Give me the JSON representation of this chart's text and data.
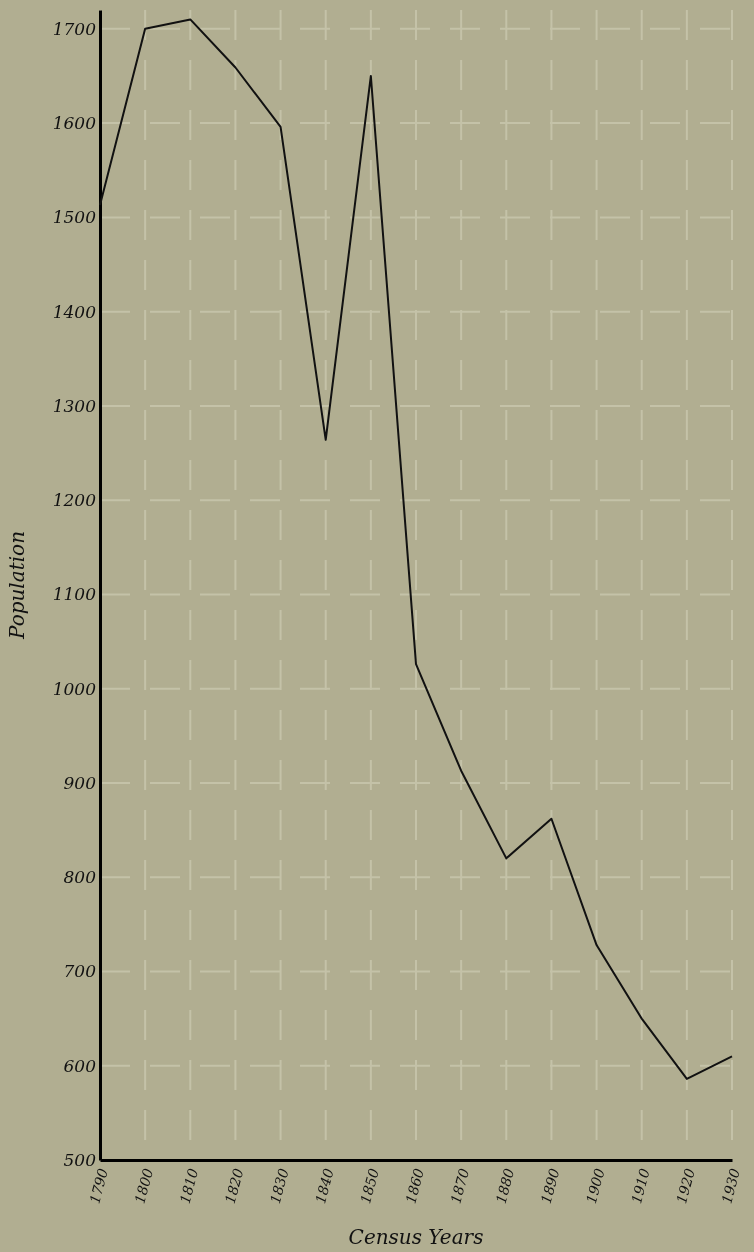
{
  "chart_data": {
    "type": "line",
    "xlabel": "Census Years",
    "ylabel": "Population",
    "x": [
      1790,
      1800,
      1810,
      1820,
      1830,
      1840,
      1850,
      1860,
      1870,
      1880,
      1890,
      1900,
      1910,
      1920,
      1930
    ],
    "values": [
      1513,
      1700,
      1710,
      1659,
      1596,
      1264,
      1650,
      1026,
      913,
      820,
      862,
      728,
      650,
      586,
      610
    ],
    "color": "#111111",
    "xlim": [
      1790,
      1930
    ],
    "xticks": [
      1790,
      1800,
      1810,
      1820,
      1830,
      1840,
      1850,
      1860,
      1870,
      1880,
      1890,
      1900,
      1910,
      1920,
      1930
    ],
    "ylim": [
      500,
      1720
    ],
    "yticks": [
      500,
      600,
      700,
      800,
      900,
      1000,
      1100,
      1200,
      1300,
      1400,
      1500,
      1600,
      1700
    ],
    "grid": true,
    "marker": "none",
    "line_style": "solid"
  }
}
